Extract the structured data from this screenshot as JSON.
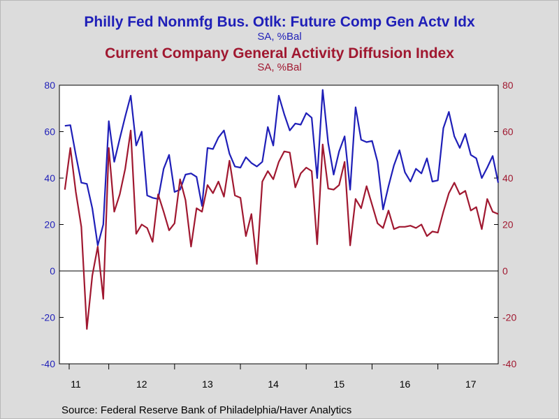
{
  "titles": {
    "series1_title": "Philly Fed Nonmfg Bus. Otlk: Future Comp Gen Actv Idx",
    "series1_subtitle": "SA, %Bal",
    "series2_title": "Current Company General Activity Diffusion Index",
    "series2_subtitle": "SA, %Bal"
  },
  "source": "Source:  Federal Reserve Bank of Philadelphia/Haver Analytics",
  "colors": {
    "series1": "#1f1fb8",
    "series2": "#a01830",
    "background": "#dcdcdc",
    "plot_bg": "#ffffff"
  },
  "chart_data": {
    "type": "line",
    "x_start": "2011-04",
    "x_end": "2017-12",
    "ylim_left": [
      -40,
      80
    ],
    "ylim_right": [
      -40,
      80
    ],
    "yticks": [
      -40,
      -20,
      0,
      20,
      40,
      60,
      80
    ],
    "xtick_labels": [
      "11",
      "12",
      "13",
      "14",
      "15",
      "16",
      "17"
    ],
    "xtick_years": [
      2011,
      2012,
      2013,
      2014,
      2015,
      2016,
      2017
    ],
    "grid": false,
    "zero_line": true,
    "series": [
      {
        "name": "Philly Fed Nonmfg Bus. Otlk: Future Comp Gen Actv Idx",
        "axis": "left",
        "color": "#1f1fb8",
        "start": "2011-05",
        "values": [
          62.5,
          62.8,
          50.0,
          38.0,
          37.5,
          27.0,
          11.0,
          20.0,
          64.5,
          47.0,
          57.0,
          66.5,
          75.5,
          54.0,
          60.0,
          32.5,
          31.5,
          31.0,
          44.0,
          50.0,
          34.0,
          35.0,
          41.5,
          42.0,
          40.5,
          28.0,
          53.0,
          52.5,
          57.5,
          60.5,
          50.5,
          45.0,
          44.5,
          49.0,
          46.5,
          45.0,
          47.0,
          62.0,
          54.0,
          75.5,
          67.5,
          60.5,
          63.5,
          63.0,
          68.0,
          66.0,
          40.0,
          78.0,
          55.0,
          41.5,
          51.5,
          58.0,
          35.0,
          70.5,
          56.5,
          55.5,
          56.0,
          47.0,
          26.5,
          36.5,
          45.5,
          52.0,
          42.5,
          38.5,
          44.0,
          42.0,
          48.5,
          38.5,
          39.0,
          61.5,
          68.5,
          58.0,
          53.0,
          59.0,
          50.0,
          48.5,
          40.0,
          44.5,
          49.5,
          38.0
        ]
      },
      {
        "name": "Current Company General Activity Diffusion Index",
        "axis": "right",
        "color": "#a01830",
        "start": "2011-05",
        "values": [
          35.0,
          53.0,
          34.0,
          19.0,
          -25.0,
          -2.0,
          10.5,
          -12.0,
          53.0,
          25.5,
          33.0,
          44.0,
          60.5,
          16.0,
          20.0,
          18.5,
          12.5,
          33.0,
          25.5,
          17.5,
          20.5,
          39.5,
          30.5,
          10.5,
          27.0,
          25.5,
          37.0,
          33.5,
          38.5,
          32.0,
          47.5,
          32.5,
          31.5,
          15.0,
          24.5,
          3.0,
          38.5,
          43.0,
          39.5,
          47.0,
          51.5,
          51.0,
          36.0,
          42.0,
          44.5,
          43.0,
          11.5,
          54.5,
          35.5,
          35.0,
          37.0,
          47.0,
          11.0,
          31.0,
          27.0,
          36.5,
          28.5,
          20.5,
          18.5,
          26.0,
          18.0,
          19.0,
          19.0,
          19.5,
          18.5,
          20.0,
          15.0,
          17.0,
          16.5,
          25.5,
          33.5,
          38.0,
          33.0,
          34.5,
          26.0,
          27.5,
          18.0,
          31.0,
          25.5,
          24.5
        ]
      }
    ]
  }
}
